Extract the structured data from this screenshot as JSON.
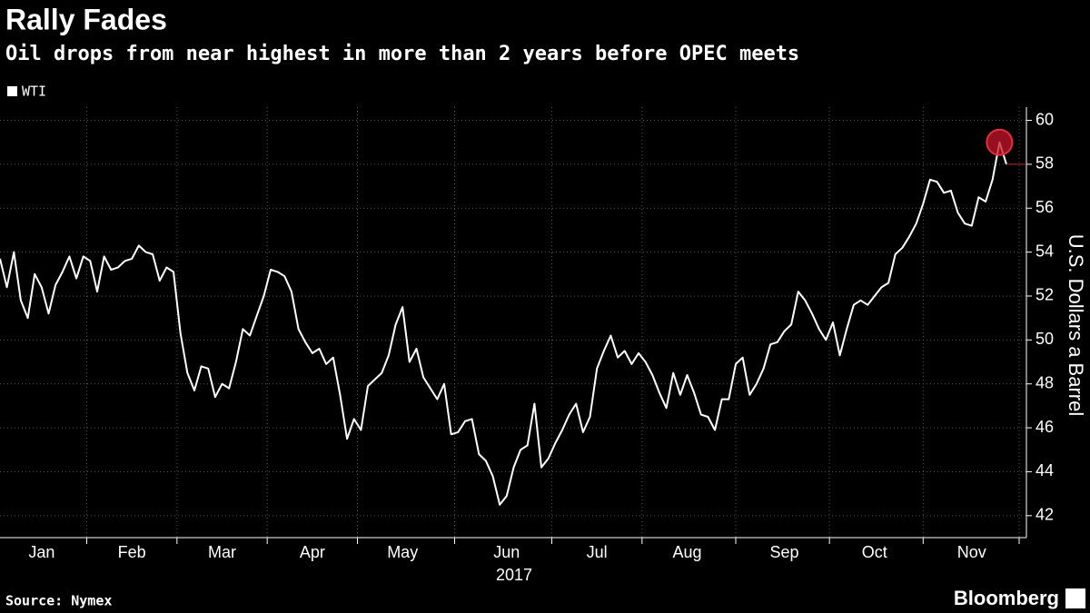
{
  "chart_data": {
    "type": "line",
    "title": "Rally Fades",
    "subtitle": "Oil drops from near highest in more than 2 years before OPEC meets",
    "y_label": "U.S. Dollars a Barrel",
    "x_label": "2017",
    "source": "Source: Nymex",
    "brand": "Bloomberg",
    "legend": "top-left",
    "grid": true,
    "categories": [
      null,
      null,
      null,
      null,
      null,
      null,
      "Jan",
      null,
      null,
      null,
      null,
      null,
      null,
      null,
      null,
      null,
      null,
      null,
      null,
      "Feb",
      null,
      null,
      null,
      null,
      null,
      null,
      null,
      null,
      null,
      null,
      null,
      null,
      "Mar",
      null,
      null,
      null,
      null,
      null,
      null,
      null,
      null,
      null,
      null,
      null,
      null,
      "Apr",
      null,
      null,
      null,
      null,
      null,
      null,
      null,
      null,
      null,
      null,
      null,
      null,
      "May",
      null,
      null,
      null,
      null,
      null,
      null,
      null,
      null,
      null,
      null,
      null,
      null,
      null,
      null,
      "Jun",
      null,
      null,
      null,
      null,
      null,
      null,
      null,
      null,
      null,
      null,
      null,
      null,
      "Jul",
      null,
      null,
      null,
      null,
      null,
      null,
      null,
      null,
      null,
      null,
      null,
      null,
      "Aug",
      null,
      null,
      null,
      null,
      null,
      null,
      null,
      null,
      null,
      null,
      null,
      null,
      null,
      "Sep",
      null,
      null,
      null,
      null,
      null,
      null,
      null,
      null,
      null,
      null,
      null,
      null,
      "Oct",
      null,
      null,
      null,
      null,
      null,
      null,
      null,
      null,
      null,
      null,
      null,
      null,
      null,
      "Nov",
      null,
      null,
      null,
      null,
      null
    ],
    "series": [
      {
        "name": "WTI",
        "color": "#ffffff",
        "values": [
          53.7,
          52.4,
          54.0,
          51.8,
          51.0,
          53.0,
          52.4,
          51.2,
          52.5,
          53.1,
          53.8,
          52.8,
          53.8,
          53.6,
          52.2,
          53.8,
          53.2,
          53.3,
          53.6,
          53.7,
          54.3,
          54.0,
          53.9,
          52.7,
          53.3,
          53.1,
          50.3,
          48.5,
          47.7,
          48.8,
          48.7,
          47.4,
          48.0,
          47.8,
          49.0,
          50.5,
          50.2,
          51.1,
          52.0,
          53.2,
          53.1,
          52.9,
          52.2,
          50.5,
          49.9,
          49.4,
          49.6,
          48.9,
          49.2,
          47.5,
          45.5,
          46.4,
          45.9,
          47.9,
          48.2,
          48.5,
          49.3,
          50.7,
          51.5,
          49.0,
          49.6,
          48.3,
          47.8,
          47.3,
          48.0,
          45.7,
          45.8,
          46.3,
          46.4,
          44.8,
          44.5,
          43.8,
          42.5,
          42.9,
          44.2,
          45.0,
          45.2,
          47.1,
          44.2,
          44.6,
          45.3,
          45.9,
          46.6,
          47.1,
          45.8,
          46.5,
          48.7,
          49.5,
          50.2,
          49.2,
          49.5,
          48.9,
          49.4,
          49.0,
          48.4,
          47.6,
          46.9,
          48.5,
          47.5,
          48.4,
          47.6,
          46.6,
          46.5,
          45.9,
          47.3,
          47.3,
          48.9,
          49.2,
          47.5,
          48.0,
          48.7,
          49.8,
          49.9,
          50.4,
          50.7,
          52.2,
          51.8,
          51.2,
          50.5,
          50.0,
          50.8,
          49.3,
          50.5,
          51.6,
          51.8,
          51.6,
          52.0,
          52.4,
          52.6,
          53.9,
          54.2,
          54.7,
          55.3,
          56.2,
          57.3,
          57.2,
          56.7,
          56.8,
          55.8,
          55.3,
          55.2,
          56.5,
          56.3,
          57.3,
          59.0,
          58.0
        ]
      }
    ],
    "ylim": [
      41,
      60.6
    ],
    "yticks": [
      42,
      44,
      46,
      48,
      50,
      52,
      54,
      56,
      58,
      60
    ]
  }
}
